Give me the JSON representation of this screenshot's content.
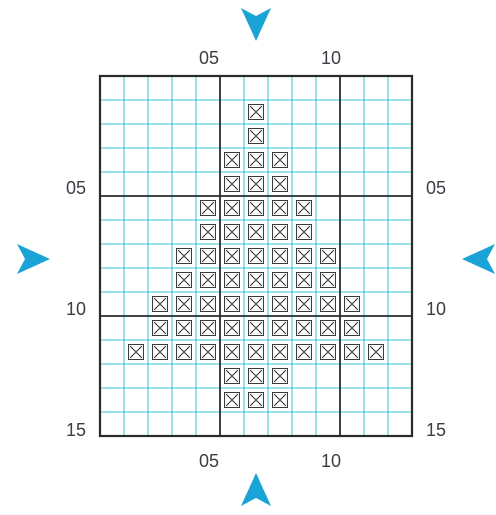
{
  "chart_data": {
    "type": "cross-stitch-pattern",
    "grid": {
      "columns": 13,
      "rows": 15,
      "major_every": 5
    },
    "stitch_symbol": "cross-in-box",
    "colors": {
      "minor_grid": "#33c2cf",
      "major_grid": "#2b2b2b",
      "arrow": "#1aa3d6",
      "symbol": "#3a3a3a"
    },
    "labels": {
      "top": [
        "05",
        "10"
      ],
      "bottom": [
        "05",
        "10"
      ],
      "left": [
        "05",
        "10",
        "15"
      ],
      "right": [
        "05",
        "10",
        "15"
      ]
    },
    "arrows": [
      "top-center-arrow",
      "bottom-center-arrow",
      "left-center-arrow",
      "right-center-arrow"
    ],
    "stitches": [
      {
        "row": 2,
        "cols": [
          7
        ]
      },
      {
        "row": 3,
        "cols": [
          7
        ]
      },
      {
        "row": 4,
        "cols": [
          6,
          7,
          8
        ]
      },
      {
        "row": 5,
        "cols": [
          6,
          7,
          8
        ]
      },
      {
        "row": 6,
        "cols": [
          5,
          6,
          7,
          8,
          9
        ]
      },
      {
        "row": 7,
        "cols": [
          5,
          6,
          7,
          8,
          9
        ]
      },
      {
        "row": 8,
        "cols": [
          4,
          5,
          6,
          7,
          8,
          9,
          10
        ]
      },
      {
        "row": 9,
        "cols": [
          4,
          5,
          6,
          7,
          8,
          9,
          10
        ]
      },
      {
        "row": 10,
        "cols": [
          3,
          4,
          5,
          6,
          7,
          8,
          9,
          10,
          11
        ]
      },
      {
        "row": 11,
        "cols": [
          3,
          4,
          5,
          6,
          7,
          8,
          9,
          10,
          11
        ]
      },
      {
        "row": 12,
        "cols": [
          2,
          3,
          4,
          5,
          6,
          7,
          8,
          9,
          10,
          11,
          12
        ]
      },
      {
        "row": 13,
        "cols": [
          6,
          7,
          8
        ]
      },
      {
        "row": 14,
        "cols": [
          6,
          7,
          8
        ]
      }
    ]
  }
}
